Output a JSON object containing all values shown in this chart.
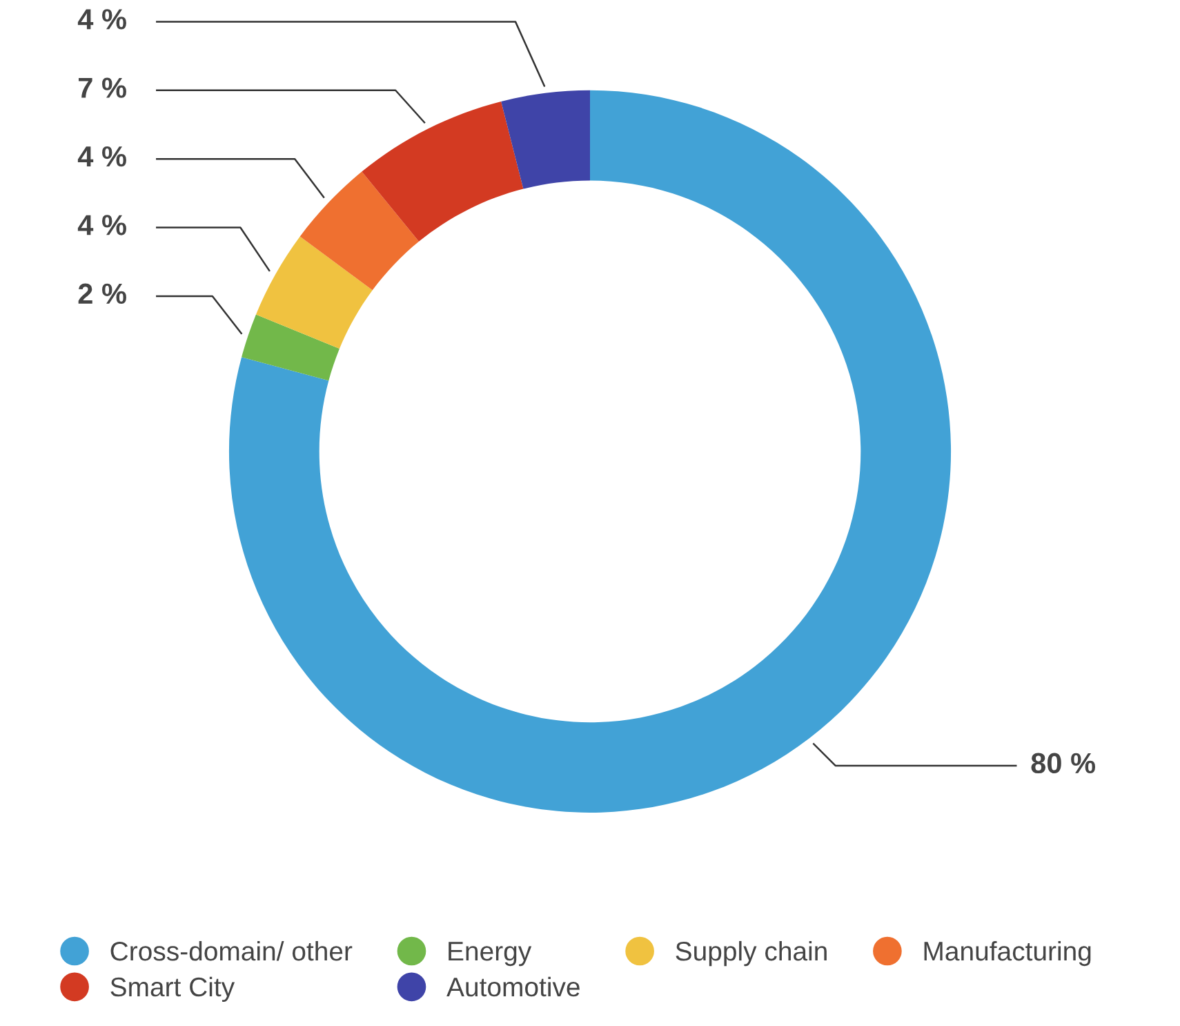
{
  "chart_data": {
    "type": "donut",
    "categories": [
      "Cross-domain/ other",
      "Energy",
      "Supply chain",
      "Manufacturing",
      "Smart City",
      "Automotive"
    ],
    "values": [
      80,
      2,
      4,
      4,
      7,
      4
    ],
    "value_labels": [
      "80 %",
      "2 %",
      "4 %",
      "4 %",
      "7 %",
      "4 %"
    ],
    "colors": [
      "#42a2d6",
      "#72b84a",
      "#f0c240",
      "#ef7030",
      "#d33a22",
      "#3f44a8"
    ],
    "legend": "bottom"
  }
}
